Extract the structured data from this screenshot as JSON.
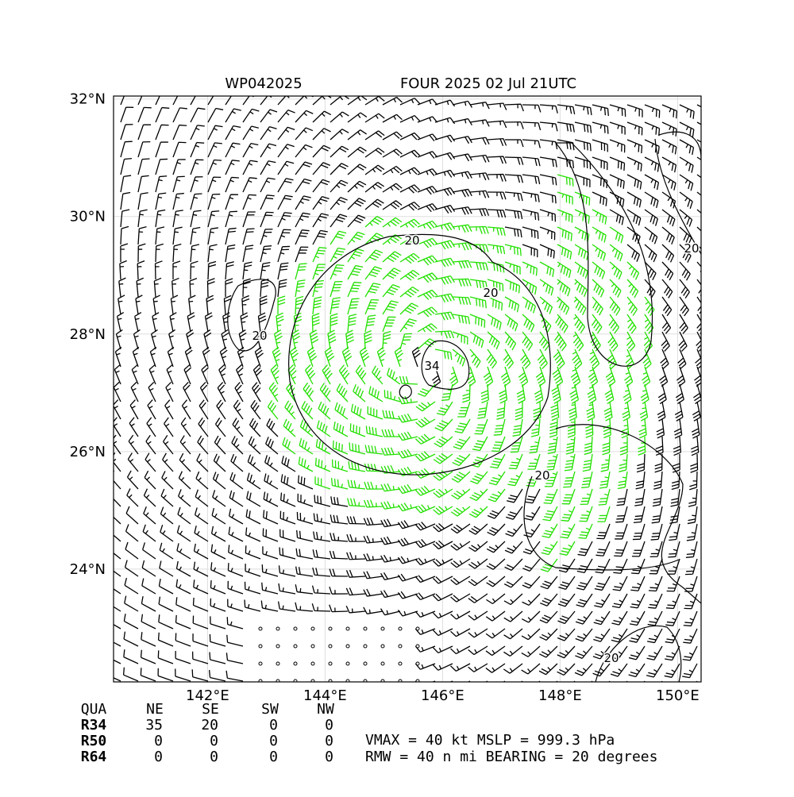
{
  "header": {
    "storm_id": "WP042025",
    "title": "FOUR 2025 02 Jul 21UTC"
  },
  "map": {
    "lon_range": [
      140.4,
      150.4
    ],
    "lat_range": [
      22.08,
      32.05
    ],
    "lat_ticks": [
      {
        "value": 24,
        "label": "24°N"
      },
      {
        "value": 26,
        "label": "26°N"
      },
      {
        "value": 28,
        "label": "28°N"
      },
      {
        "value": 30,
        "label": "30°N"
      },
      {
        "value": 32,
        "label": "32°N"
      }
    ],
    "lon_ticks": [
      {
        "value": 142,
        "label": "142°E"
      },
      {
        "value": 144,
        "label": "144°E"
      },
      {
        "value": 146,
        "label": "146°E"
      },
      {
        "value": 148,
        "label": "148°E"
      },
      {
        "value": 150,
        "label": "150°E"
      }
    ],
    "contour_labels": [
      "20",
      "20",
      "20",
      "34",
      "20",
      "20",
      "20"
    ]
  },
  "table": {
    "header": [
      "QUA",
      "NE",
      "SE",
      "SW",
      "NW"
    ],
    "rows": [
      [
        "R34",
        "35",
        "20",
        "0",
        "0"
      ],
      [
        "R50",
        "0",
        "0",
        "0",
        "0"
      ],
      [
        "R64",
        "0",
        "0",
        "0",
        "0"
      ]
    ]
  },
  "info": [
    "VMAX =  40 kt MSLP = 999.3 hPa",
    "RMW =  40 n mi BEARING =  20 degrees"
  ]
}
